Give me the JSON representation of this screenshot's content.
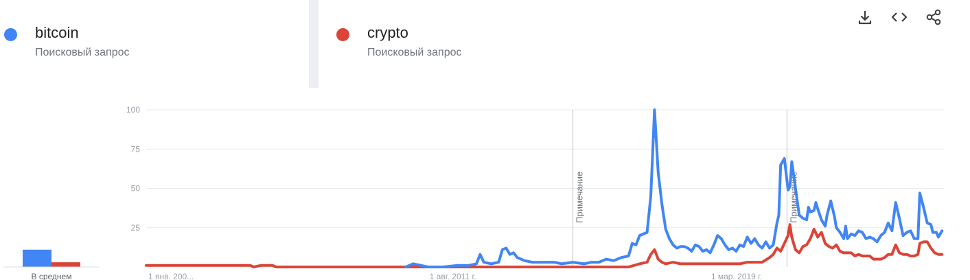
{
  "terms": [
    {
      "name": "bitcoin",
      "subtitle": "Поисковый запрос",
      "color": "#4285f4"
    },
    {
      "name": "crypto",
      "subtitle": "Поисковый запрос",
      "color": "#db4437"
    }
  ],
  "toolbar": {
    "download_icon": "download-icon",
    "embed_icon": "code-icon",
    "share_icon": "share-icon"
  },
  "average": {
    "label": "В среднем",
    "values": [
      11,
      3
    ]
  },
  "chart_data": {
    "type": "line",
    "ylim": [
      0,
      100
    ],
    "yticks": [
      25,
      50,
      75,
      100
    ],
    "ytick_labels": [
      "25",
      "50",
      "75",
      "100"
    ],
    "x_range": [
      2004.0,
      2025.5
    ],
    "xtick_labels": [
      {
        "label": "1 янв. 200...",
        "x": 2004.0
      },
      {
        "label": "1 авг. 2011 г.",
        "x": 2011.58
      },
      {
        "label": "1 мар. 2019 г.",
        "x": 2019.17
      }
    ],
    "annotations": [
      {
        "label": "Примечание",
        "x": 2015.5
      },
      {
        "label": "Примечание",
        "x": 2021.27
      }
    ],
    "grid": true,
    "series": [
      {
        "name": "bitcoin",
        "color": "#4285f4",
        "points": [
          [
            2011.0,
            0
          ],
          [
            2011.2,
            2
          ],
          [
            2011.4,
            1
          ],
          [
            2011.6,
            0
          ],
          [
            2012.0,
            0
          ],
          [
            2012.4,
            1
          ],
          [
            2012.7,
            1
          ],
          [
            2012.9,
            2
          ],
          [
            2013.0,
            8
          ],
          [
            2013.1,
            3
          ],
          [
            2013.3,
            2
          ],
          [
            2013.5,
            3
          ],
          [
            2013.6,
            11
          ],
          [
            2013.7,
            12
          ],
          [
            2013.8,
            8
          ],
          [
            2013.9,
            9
          ],
          [
            2014.0,
            6
          ],
          [
            2014.2,
            4
          ],
          [
            2014.4,
            3
          ],
          [
            2014.8,
            3
          ],
          [
            2015.0,
            3
          ],
          [
            2015.2,
            2
          ],
          [
            2015.5,
            3
          ],
          [
            2015.8,
            2
          ],
          [
            2016.0,
            3
          ],
          [
            2016.2,
            3
          ],
          [
            2016.4,
            5
          ],
          [
            2016.6,
            4
          ],
          [
            2016.8,
            6
          ],
          [
            2017.0,
            7
          ],
          [
            2017.1,
            15
          ],
          [
            2017.2,
            14
          ],
          [
            2017.3,
            20
          ],
          [
            2017.4,
            21
          ],
          [
            2017.5,
            22
          ],
          [
            2017.6,
            45
          ],
          [
            2017.65,
            72
          ],
          [
            2017.7,
            100
          ],
          [
            2017.8,
            60
          ],
          [
            2017.9,
            40
          ],
          [
            2018.0,
            24
          ],
          [
            2018.1,
            18
          ],
          [
            2018.2,
            14
          ],
          [
            2018.3,
            12
          ],
          [
            2018.4,
            13
          ],
          [
            2018.5,
            13
          ],
          [
            2018.6,
            12
          ],
          [
            2018.7,
            10
          ],
          [
            2018.8,
            14
          ],
          [
            2018.9,
            13
          ],
          [
            2019.0,
            10
          ],
          [
            2019.1,
            11
          ],
          [
            2019.2,
            9
          ],
          [
            2019.3,
            14
          ],
          [
            2019.4,
            20
          ],
          [
            2019.5,
            18
          ],
          [
            2019.6,
            14
          ],
          [
            2019.7,
            11
          ],
          [
            2019.8,
            12
          ],
          [
            2019.9,
            10
          ],
          [
            2020.0,
            14
          ],
          [
            2020.1,
            13
          ],
          [
            2020.2,
            19
          ],
          [
            2020.3,
            15
          ],
          [
            2020.4,
            18
          ],
          [
            2020.5,
            14
          ],
          [
            2020.6,
            12
          ],
          [
            2020.7,
            16
          ],
          [
            2020.8,
            12
          ],
          [
            2020.9,
            14
          ],
          [
            2021.0,
            28
          ],
          [
            2021.05,
            33
          ],
          [
            2021.1,
            65
          ],
          [
            2021.2,
            69
          ],
          [
            2021.3,
            49
          ],
          [
            2021.35,
            51
          ],
          [
            2021.4,
            67
          ],
          [
            2021.5,
            50
          ],
          [
            2021.6,
            33
          ],
          [
            2021.7,
            31
          ],
          [
            2021.8,
            30
          ],
          [
            2021.85,
            38
          ],
          [
            2021.9,
            35
          ],
          [
            2022.0,
            36
          ],
          [
            2022.05,
            41
          ],
          [
            2022.1,
            37
          ],
          [
            2022.2,
            30
          ],
          [
            2022.3,
            26
          ],
          [
            2022.35,
            33
          ],
          [
            2022.45,
            42
          ],
          [
            2022.55,
            32
          ],
          [
            2022.6,
            25
          ],
          [
            2022.7,
            22
          ],
          [
            2022.8,
            18
          ],
          [
            2022.85,
            26
          ],
          [
            2022.9,
            18
          ],
          [
            2023.0,
            21
          ],
          [
            2023.1,
            20
          ],
          [
            2023.2,
            23
          ],
          [
            2023.3,
            22
          ],
          [
            2023.4,
            18
          ],
          [
            2023.5,
            19
          ],
          [
            2023.6,
            18
          ],
          [
            2023.7,
            16
          ],
          [
            2023.8,
            20
          ],
          [
            2023.9,
            22
          ],
          [
            2024.0,
            28
          ],
          [
            2024.1,
            23
          ],
          [
            2024.2,
            41
          ],
          [
            2024.3,
            31
          ],
          [
            2024.4,
            20
          ],
          [
            2024.5,
            22
          ],
          [
            2024.6,
            23
          ],
          [
            2024.7,
            18
          ],
          [
            2024.8,
            18
          ],
          [
            2024.85,
            47
          ],
          [
            2024.95,
            38
          ],
          [
            2025.05,
            28
          ],
          [
            2025.15,
            27
          ],
          [
            2025.2,
            22
          ],
          [
            2025.3,
            22
          ],
          [
            2025.35,
            19
          ],
          [
            2025.45,
            23
          ]
        ]
      },
      {
        "name": "crypto",
        "color": "#db4437",
        "points": [
          [
            2004.0,
            1
          ],
          [
            2006.8,
            1
          ],
          [
            2006.9,
            0
          ],
          [
            2007.1,
            1
          ],
          [
            2007.4,
            1
          ],
          [
            2007.5,
            0
          ],
          [
            2017.0,
            0
          ],
          [
            2017.3,
            2
          ],
          [
            2017.5,
            3
          ],
          [
            2017.6,
            8
          ],
          [
            2017.7,
            11
          ],
          [
            2017.8,
            5
          ],
          [
            2017.9,
            3
          ],
          [
            2018.0,
            2
          ],
          [
            2018.2,
            3
          ],
          [
            2018.4,
            2
          ],
          [
            2020.0,
            2
          ],
          [
            2020.2,
            3
          ],
          [
            2020.4,
            3
          ],
          [
            2020.6,
            3
          ],
          [
            2020.8,
            6
          ],
          [
            2020.9,
            8
          ],
          [
            2021.0,
            12
          ],
          [
            2021.1,
            10
          ],
          [
            2021.2,
            15
          ],
          [
            2021.3,
            20
          ],
          [
            2021.35,
            27
          ],
          [
            2021.4,
            19
          ],
          [
            2021.5,
            11
          ],
          [
            2021.6,
            9
          ],
          [
            2021.7,
            13
          ],
          [
            2021.8,
            14
          ],
          [
            2021.9,
            18
          ],
          [
            2022.0,
            24
          ],
          [
            2022.1,
            19
          ],
          [
            2022.2,
            22
          ],
          [
            2022.3,
            15
          ],
          [
            2022.4,
            13
          ],
          [
            2022.5,
            12
          ],
          [
            2022.6,
            14
          ],
          [
            2022.7,
            10
          ],
          [
            2022.8,
            9
          ],
          [
            2022.9,
            9
          ],
          [
            2023.0,
            9
          ],
          [
            2023.1,
            7
          ],
          [
            2023.2,
            8
          ],
          [
            2023.3,
            7
          ],
          [
            2023.5,
            7
          ],
          [
            2023.6,
            5
          ],
          [
            2023.8,
            5
          ],
          [
            2023.9,
            6
          ],
          [
            2024.0,
            8
          ],
          [
            2024.1,
            8
          ],
          [
            2024.2,
            14
          ],
          [
            2024.3,
            9
          ],
          [
            2024.4,
            8
          ],
          [
            2024.5,
            8
          ],
          [
            2024.6,
            7
          ],
          [
            2024.7,
            7
          ],
          [
            2024.8,
            8
          ],
          [
            2024.85,
            15
          ],
          [
            2024.95,
            16
          ],
          [
            2025.05,
            16
          ],
          [
            2025.15,
            12
          ],
          [
            2025.25,
            9
          ],
          [
            2025.35,
            8
          ],
          [
            2025.45,
            8
          ]
        ]
      }
    ]
  }
}
